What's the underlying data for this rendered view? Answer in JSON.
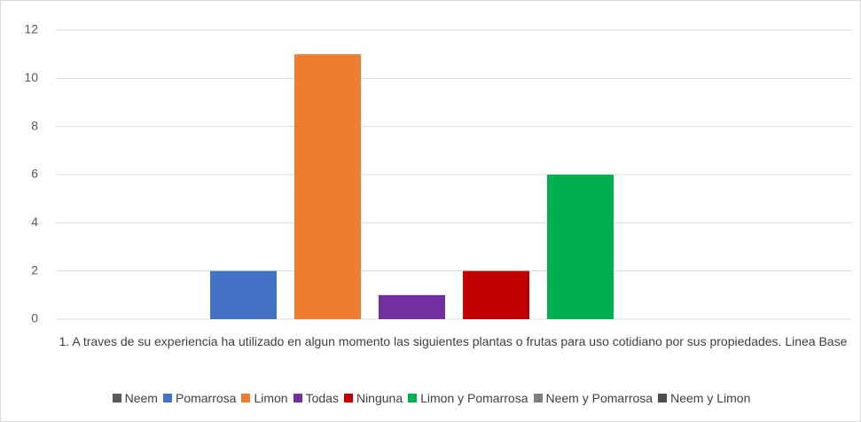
{
  "chart_data": {
    "type": "bar",
    "categories": [
      "1. A traves de su experiencia ha utilizado en algun momento las siguientes plantas o frutas para uso cotidiano por sus propiedades. Linea Base"
    ],
    "series": [
      {
        "name": "Neem",
        "color": "#595959",
        "values": [
          0
        ]
      },
      {
        "name": "Pomarrosa",
        "color": "#4472c4",
        "values": [
          2
        ]
      },
      {
        "name": "Limon",
        "color": "#ed7d31",
        "values": [
          11
        ]
      },
      {
        "name": "Todas",
        "color": "#7030a0",
        "values": [
          1
        ]
      },
      {
        "name": "Ninguna",
        "color": "#c00000",
        "values": [
          2
        ]
      },
      {
        "name": "Limon y Pomarrosa",
        "color": "#00b050",
        "values": [
          6
        ]
      },
      {
        "name": "Neem y Pomarrosa",
        "color": "#7f7f7f",
        "values": [
          0
        ]
      },
      {
        "name": "Neem y Limon",
        "color": "#4d4d4d",
        "values": [
          0
        ]
      }
    ],
    "ylim": [
      0,
      12
    ],
    "yticks": [
      0,
      2,
      4,
      6,
      8,
      10,
      12
    ],
    "grid": true,
    "legend": "bottom"
  }
}
